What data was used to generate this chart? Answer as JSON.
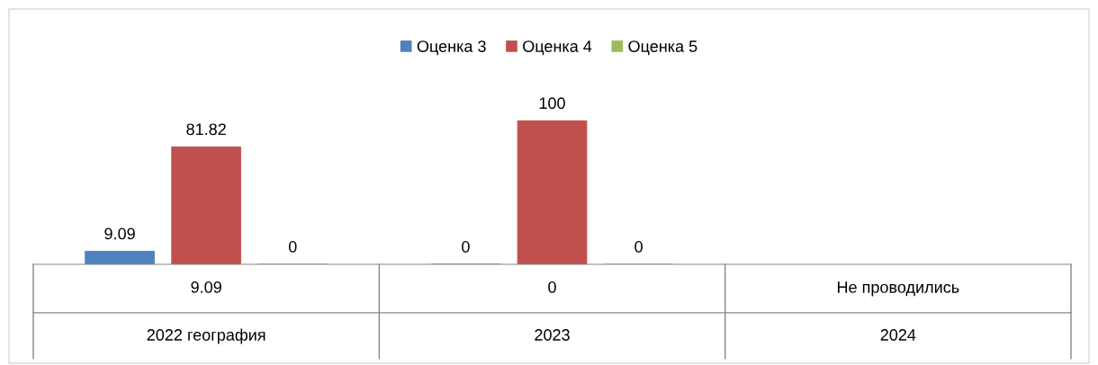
{
  "chart_data": {
    "type": "bar",
    "categories": [
      "2022 география",
      "2023",
      "2024"
    ],
    "annotations": [
      "9.09",
      "0",
      "Не проводились"
    ],
    "series": [
      {
        "name": "Оценка 3",
        "color": "#4f81bd",
        "values": [
          9.09,
          0,
          null
        ]
      },
      {
        "name": "Оценка 4",
        "color": "#c0504d",
        "values": [
          81.82,
          100,
          null
        ]
      },
      {
        "name": "Оценка 5",
        "color": "#9bbb59",
        "values": [
          0,
          0,
          null
        ]
      }
    ],
    "data_labels": true,
    "legend": "top"
  }
}
